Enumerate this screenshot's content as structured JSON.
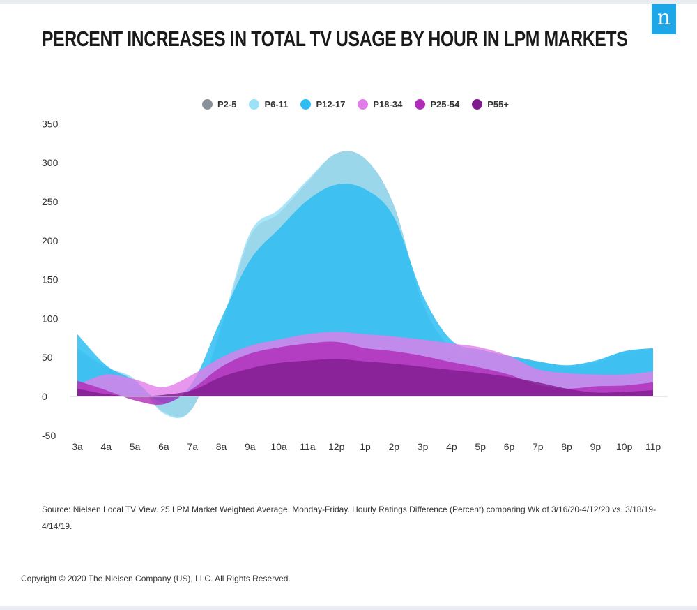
{
  "title": "PERCENT INCREASES IN TOTAL TV USAGE BY HOUR IN LPM MARKETS",
  "logo_letter": "n",
  "colors": {
    "brand": "#1ea7e8"
  },
  "chart_data": {
    "type": "area",
    "title": "PERCENT INCREASES IN TOTAL TV USAGE BY HOUR IN LPM MARKETS",
    "xlabel": "",
    "ylabel": "",
    "ylim": [
      -50,
      350
    ],
    "yticks": [
      350,
      300,
      250,
      200,
      150,
      100,
      50,
      0,
      -50
    ],
    "categories": [
      "3a",
      "4a",
      "5a",
      "6a",
      "7a",
      "8a",
      "9a",
      "10a",
      "11a",
      "12p",
      "1p",
      "2p",
      "3p",
      "4p",
      "5p",
      "6p",
      "7p",
      "8p",
      "9p",
      "10p",
      "11p"
    ],
    "legend_position": "top-center",
    "grid": false,
    "series": [
      {
        "name": "P2-5",
        "color": "#8a9099",
        "values": [
          58,
          38,
          20,
          -20,
          -15,
          85,
          205,
          235,
          275,
          312,
          305,
          245,
          118,
          62,
          55,
          52,
          45,
          38,
          42,
          55,
          60
        ]
      },
      {
        "name": "P6-11",
        "color": "#9be1f7",
        "values": [
          62,
          38,
          22,
          -22,
          -15,
          90,
          210,
          240,
          278,
          312,
          305,
          245,
          120,
          62,
          58,
          52,
          45,
          40,
          45,
          58,
          62
        ]
      },
      {
        "name": "P12-17",
        "color": "#2ebdf2",
        "values": [
          80,
          40,
          20,
          -8,
          18,
          100,
          175,
          215,
          252,
          272,
          266,
          230,
          130,
          72,
          60,
          52,
          45,
          40,
          46,
          58,
          62
        ]
      },
      {
        "name": "P18-34",
        "color": "#e17de8",
        "values": [
          15,
          28,
          22,
          12,
          28,
          50,
          65,
          73,
          80,
          83,
          80,
          77,
          73,
          68,
          63,
          52,
          35,
          30,
          28,
          28,
          32
        ]
      },
      {
        "name": "P25-54",
        "color": "#b02bb8",
        "values": [
          20,
          8,
          -5,
          -10,
          10,
          38,
          55,
          63,
          68,
          70,
          62,
          58,
          52,
          44,
          37,
          28,
          15,
          10,
          13,
          14,
          18
        ]
      },
      {
        "name": "P55+",
        "color": "#7f1b8f",
        "values": [
          10,
          3,
          0,
          2,
          8,
          25,
          36,
          43,
          46,
          48,
          45,
          42,
          38,
          34,
          30,
          25,
          18,
          10,
          5,
          6,
          8
        ]
      }
    ]
  },
  "source_text": "Source: Nielsen Local TV View. 25 LPM Market Weighted Average. Monday-Friday. Hourly Ratings Difference (Percent) comparing Wk of 3/16/20-4/12/20 vs. 3/18/19-4/14/19.",
  "copyright": "Copyright © 2020 The Nielsen Company (US), LLC. All Rights Reserved."
}
